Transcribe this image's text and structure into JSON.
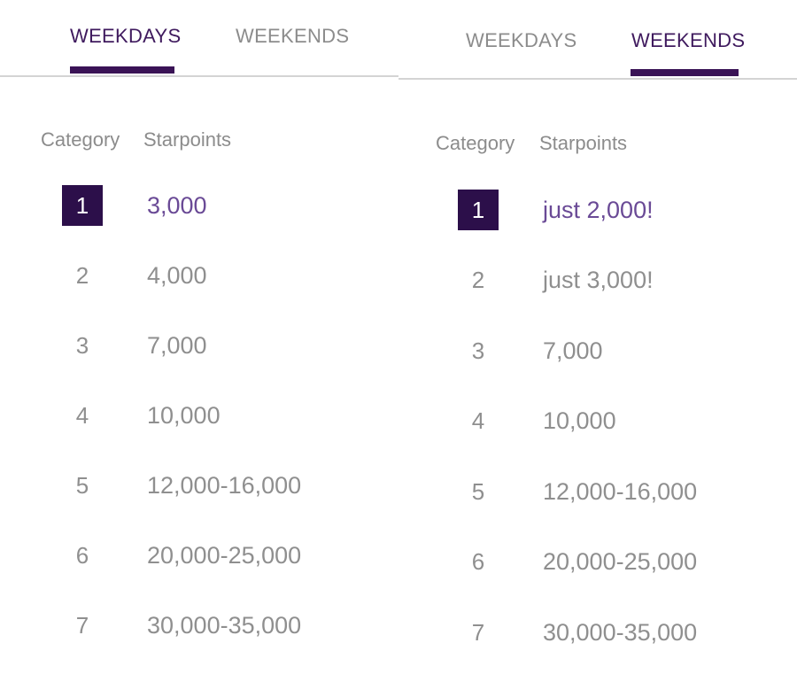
{
  "panels": [
    {
      "tabs": [
        {
          "label": "WEEKDAYS",
          "active": true
        },
        {
          "label": "WEEKENDS",
          "active": false
        }
      ],
      "headers": {
        "category": "Category",
        "starpoints": "Starpoints"
      },
      "rows": [
        {
          "category": "1",
          "starpoints": "3,000",
          "highlighted": true
        },
        {
          "category": "2",
          "starpoints": "4,000",
          "highlighted": false
        },
        {
          "category": "3",
          "starpoints": "7,000",
          "highlighted": false
        },
        {
          "category": "4",
          "starpoints": "10,000",
          "highlighted": false
        },
        {
          "category": "5",
          "starpoints": "12,000-16,000",
          "highlighted": false
        },
        {
          "category": "6",
          "starpoints": "20,000-25,000",
          "highlighted": false
        },
        {
          "category": "7",
          "starpoints": "30,000-35,000",
          "highlighted": false
        }
      ]
    },
    {
      "tabs": [
        {
          "label": "WEEKDAYS",
          "active": false
        },
        {
          "label": "WEEKENDS",
          "active": true
        }
      ],
      "headers": {
        "category": "Category",
        "starpoints": "Starpoints"
      },
      "rows": [
        {
          "category": "1",
          "starpoints": "just 2,000!",
          "highlighted": true
        },
        {
          "category": "2",
          "starpoints": "just 3,000!",
          "highlighted": false
        },
        {
          "category": "3",
          "starpoints": "7,000",
          "highlighted": false
        },
        {
          "category": "4",
          "starpoints": "10,000",
          "highlighted": false
        },
        {
          "category": "5",
          "starpoints": "12,000-16,000",
          "highlighted": false
        },
        {
          "category": "6",
          "starpoints": "20,000-25,000",
          "highlighted": false
        },
        {
          "category": "7",
          "starpoints": "30,000-35,000",
          "highlighted": false
        }
      ]
    }
  ],
  "colors": {
    "accent": "#3a1356",
    "highlight_text": "#6a4a96",
    "muted_text": "#8f8f8f",
    "divider": "#d4d4d4"
  }
}
